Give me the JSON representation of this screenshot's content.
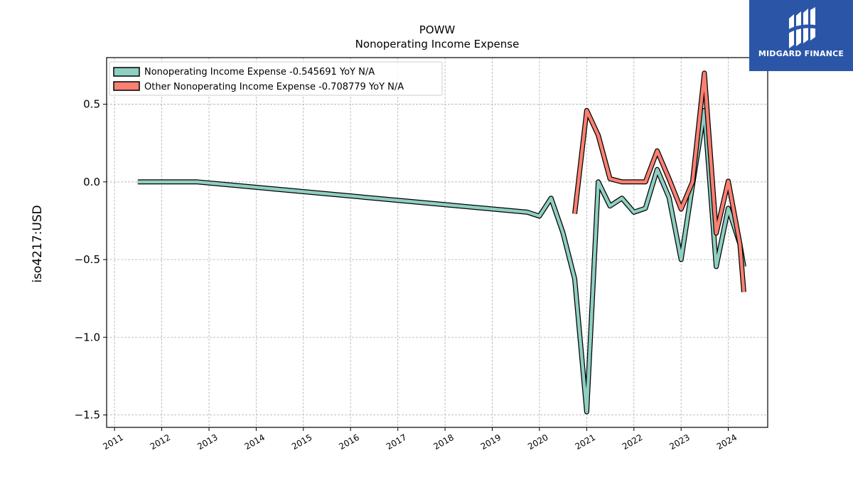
{
  "chart_data": {
    "type": "line",
    "title": "POWW",
    "subtitle": "Nonoperating Income Expense",
    "ylabel": "iso4217:USD",
    "xlabel": "",
    "xlim": [
      "2010-11-01",
      "2024-11-01"
    ],
    "ylim": [
      -1.58,
      0.8
    ],
    "x_ticks": [
      "2011",
      "2012",
      "2013",
      "2014",
      "2015",
      "2016",
      "2017",
      "2018",
      "2019",
      "2020",
      "2021",
      "2022",
      "2023",
      "2024"
    ],
    "y_ticks": [
      0.5,
      0.0,
      -0.5,
      -1.0,
      -1.5
    ],
    "y_tick_labels": [
      "0.5",
      "0.0",
      "−0.5",
      "−1.0",
      "−1.5"
    ],
    "grid": true,
    "legend_position": "top-left",
    "series": [
      {
        "name": "Nonoperating Income Expense  -0.545691 YoY N/A",
        "color": "#8ecfc1",
        "points": [
          [
            "2011-06-30",
            0.0
          ],
          [
            "2012-10-01",
            0.0
          ],
          [
            "2019-09-30",
            -0.195
          ],
          [
            "2020-01-01",
            -0.22
          ],
          [
            "2020-03-31",
            -0.105
          ],
          [
            "2020-06-30",
            -0.325
          ],
          [
            "2020-09-30",
            -0.625
          ],
          [
            "2021-01-01",
            -1.48
          ],
          [
            "2021-03-31",
            0.0
          ],
          [
            "2021-06-30",
            -0.155
          ],
          [
            "2021-09-30",
            -0.105
          ],
          [
            "2022-01-01",
            -0.195
          ],
          [
            "2022-03-31",
            -0.17
          ],
          [
            "2022-06-30",
            0.08
          ],
          [
            "2022-09-30",
            -0.1
          ],
          [
            "2023-01-01",
            -0.5
          ],
          [
            "2023-03-31",
            -0.02
          ],
          [
            "2023-06-30",
            0.46
          ],
          [
            "2023-09-30",
            -0.545
          ],
          [
            "2024-01-01",
            -0.17
          ],
          [
            "2024-03-31",
            -0.4
          ],
          [
            "2024-04-30",
            -0.545691
          ]
        ]
      },
      {
        "name": "Other Nonoperating Income Expense  -0.708779 YoY N/A",
        "color": "#fa8072",
        "points": [
          [
            "2020-09-30",
            -0.205
          ],
          [
            "2021-01-01",
            0.46
          ],
          [
            "2021-03-31",
            0.3
          ],
          [
            "2021-06-30",
            0.02
          ],
          [
            "2021-09-30",
            0.0
          ],
          [
            "2022-01-01",
            0.0
          ],
          [
            "2022-03-31",
            0.0
          ],
          [
            "2022-06-30",
            0.2
          ],
          [
            "2022-09-30",
            0.02
          ],
          [
            "2023-01-01",
            -0.175
          ],
          [
            "2023-03-31",
            0.0
          ],
          [
            "2023-06-30",
            0.7
          ],
          [
            "2023-09-30",
            -0.33
          ],
          [
            "2024-01-01",
            0.005
          ],
          [
            "2024-03-31",
            -0.4
          ],
          [
            "2024-04-30",
            -0.708779
          ]
        ]
      }
    ]
  },
  "logo": {
    "text": "MIDGARD FINANCE",
    "background": "#2b56a8"
  }
}
